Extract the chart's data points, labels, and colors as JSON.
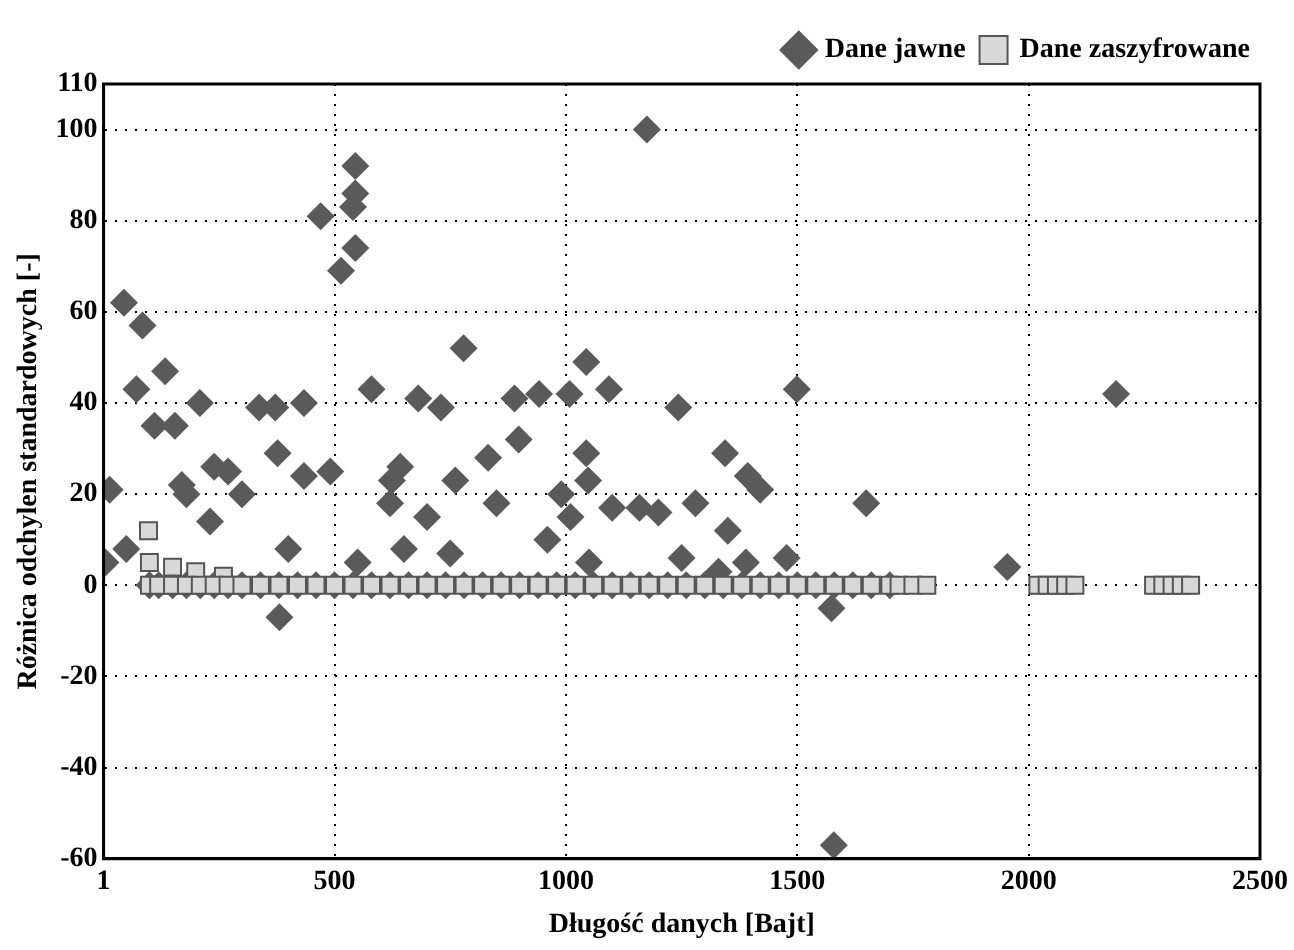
{
  "chart_data": {
    "type": "scatter",
    "xlabel": "Długość danych [Bajt]",
    "ylabel": "Różnica odchylen standardowych [-]",
    "xlim": [
      1,
      2500
    ],
    "xticks": [
      1,
      500,
      1000,
      1500,
      2000,
      2500
    ],
    "ylim": [
      -60,
      110
    ],
    "yticks": [
      -60,
      -40,
      -20,
      0,
      20,
      40,
      60,
      80,
      100,
      110
    ],
    "grid": true,
    "legend": "top right",
    "series": [
      {
        "name": "Dane jawne",
        "color": "#5a5a5a",
        "marker": "diamond",
        "x": [
          45,
          85,
          72,
          111,
          155,
          134,
          209,
          337,
          372,
          434,
          470,
          514,
          545,
          545,
          540,
          545,
          580,
          681,
          730,
          779,
          889,
          942,
          1008,
          1044,
          1093,
          1175,
          832,
          377,
          240,
          270,
          434,
          491,
          14,
          624,
          642,
          761,
          898,
          1044,
          1048,
          1499,
          2189,
          1243,
          1344,
          1393,
          381,
          231,
          960,
          5,
          50,
          1574,
          1579,
          1649,
          1954,
          1477,
          1389,
          1159,
          300,
          620,
          700,
          850,
          990,
          1010,
          1100,
          1200,
          1280,
          1350,
          1420,
          400,
          550,
          650,
          750,
          1050,
          1250,
          1330,
          170,
          180,
          100,
          120,
          150,
          180,
          210,
          240,
          270,
          300,
          340,
          380,
          420,
          460,
          500,
          540,
          580,
          620,
          660,
          700,
          740,
          780,
          820,
          860,
          900,
          940,
          980,
          1020,
          1060,
          1100,
          1140,
          1180,
          1220,
          1260,
          1300,
          1340,
          1380,
          1420,
          1460,
          1500,
          1540,
          1580,
          1620,
          1660,
          1700
        ],
        "values": [
          62,
          57,
          43,
          35,
          35,
          47,
          40,
          39,
          39,
          40,
          81,
          69,
          92,
          86,
          83,
          74,
          43,
          41,
          39,
          52,
          41,
          42,
          42,
          49,
          43,
          100,
          28,
          29,
          26,
          25,
          24,
          25,
          21,
          23,
          26,
          23,
          32,
          29,
          23,
          43,
          42,
          39,
          29,
          24,
          -7,
          14,
          10,
          5,
          8,
          -5,
          -57,
          18,
          4,
          6,
          5,
          17,
          20,
          18,
          15,
          18,
          20,
          15,
          17,
          16,
          18,
          12,
          21,
          8,
          5,
          8,
          7,
          5,
          6,
          3,
          22,
          20,
          0,
          0,
          0,
          0,
          0,
          0,
          0,
          0,
          0,
          0,
          0,
          0,
          0,
          0,
          0,
          0,
          0,
          0,
          0,
          0,
          0,
          0,
          0,
          0,
          0,
          0,
          0,
          0,
          0,
          0,
          0,
          0,
          0,
          0,
          0,
          0,
          0,
          0,
          0,
          0,
          0,
          0,
          0
        ]
      },
      {
        "name": "Dane zaszyfrowane",
        "color": "#d8d8d8",
        "marker": "square",
        "x": [
          98,
          100,
          150,
          200,
          260,
          100,
          120,
          150,
          180,
          210,
          240,
          270,
          300,
          340,
          380,
          420,
          460,
          500,
          540,
          580,
          620,
          660,
          700,
          740,
          780,
          820,
          860,
          900,
          940,
          980,
          1020,
          1060,
          1100,
          1140,
          1180,
          1220,
          1260,
          1300,
          1340,
          1380,
          1420,
          1460,
          1500,
          1540,
          1580,
          1620,
          1660,
          1700,
          1720,
          1750,
          1780,
          2020,
          2040,
          2060,
          2080,
          2100,
          2270,
          2290,
          2310,
          2330,
          2350
        ],
        "values": [
          12,
          5,
          4,
          3,
          2,
          0,
          0,
          0,
          0,
          0,
          0,
          0,
          0,
          0,
          0,
          0,
          0,
          0,
          0,
          0,
          0,
          0,
          0,
          0,
          0,
          0,
          0,
          0,
          0,
          0,
          0,
          0,
          0,
          0,
          0,
          0,
          0,
          0,
          0,
          0,
          0,
          0,
          0,
          0,
          0,
          0,
          0,
          0,
          0,
          0,
          0,
          0,
          0,
          0,
          0,
          0,
          0,
          0,
          0,
          0,
          0
        ]
      }
    ]
  }
}
